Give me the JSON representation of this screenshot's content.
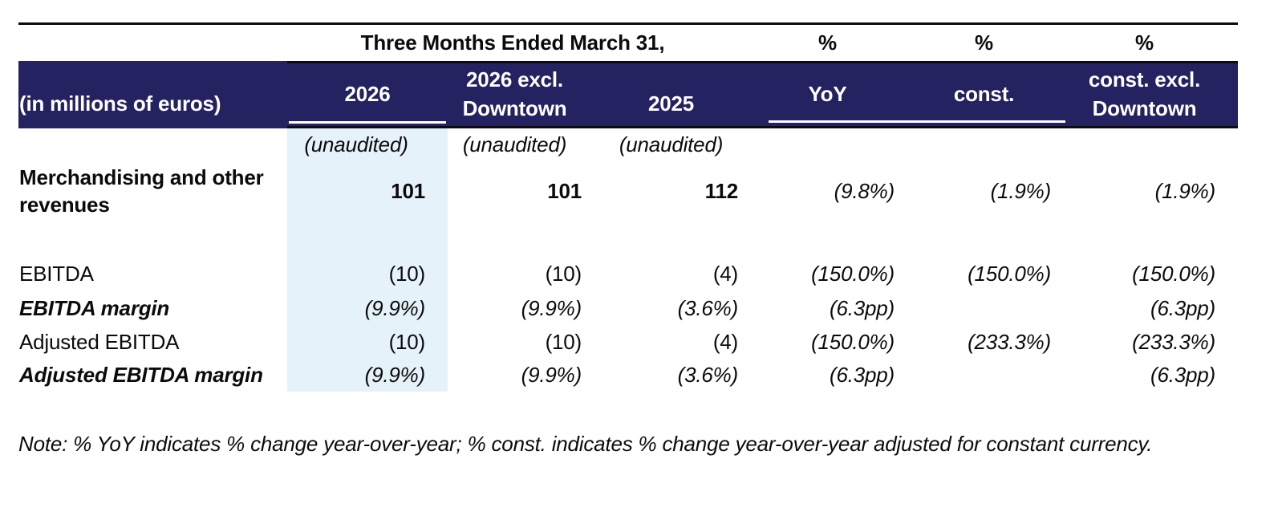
{
  "colors": {
    "header_band": "#242260",
    "highlight_column": "#E6F2F9",
    "rule": "#0c0c0c"
  },
  "table": {
    "period_header": "Three Months Ended March 31,",
    "pct_headers": [
      "%",
      "%",
      "%"
    ],
    "unit_label": "(in millions of euros)",
    "column_headers": [
      {
        "line1": "2026",
        "line2": ""
      },
      {
        "line1": "2026 excl.",
        "line2": "Downtown"
      },
      {
        "line1": "2025",
        "line2": ""
      },
      {
        "line1": "YoY",
        "line2": ""
      },
      {
        "line1": "const.",
        "line2": ""
      },
      {
        "line1": "const. excl.",
        "line2": "Downtown"
      }
    ],
    "unaudited_labels": [
      "(unaudited)",
      "(unaudited)",
      "(unaudited)"
    ],
    "rows": [
      {
        "label": "Merchandising and other revenues",
        "values": [
          "101",
          "101",
          "112",
          "(9.8%)",
          "(1.9%)",
          "(1.9%)"
        ]
      },
      {
        "label": "EBITDA",
        "values": [
          "(10)",
          "(10)",
          "(4)",
          "(150.0%)",
          "(150.0%)",
          "(150.0%)"
        ]
      },
      {
        "label": "EBITDA margin",
        "values": [
          "(9.9%)",
          "(9.9%)",
          "(3.6%)",
          "(6.3pp)",
          "",
          "(6.3pp)"
        ]
      },
      {
        "label": "Adjusted EBITDA",
        "values": [
          "(10)",
          "(10)",
          "(4)",
          "(150.0%)",
          "(233.3%)",
          "(233.3%)"
        ]
      },
      {
        "label": "Adjusted EBITDA margin",
        "values": [
          "(9.9%)",
          "(9.9%)",
          "(3.6%)",
          "(6.3pp)",
          "",
          "(6.3pp)"
        ]
      }
    ]
  },
  "note": "Note: % YoY indicates % change year-over-year; % const. indicates % change year-over-year adjusted for constant currency."
}
